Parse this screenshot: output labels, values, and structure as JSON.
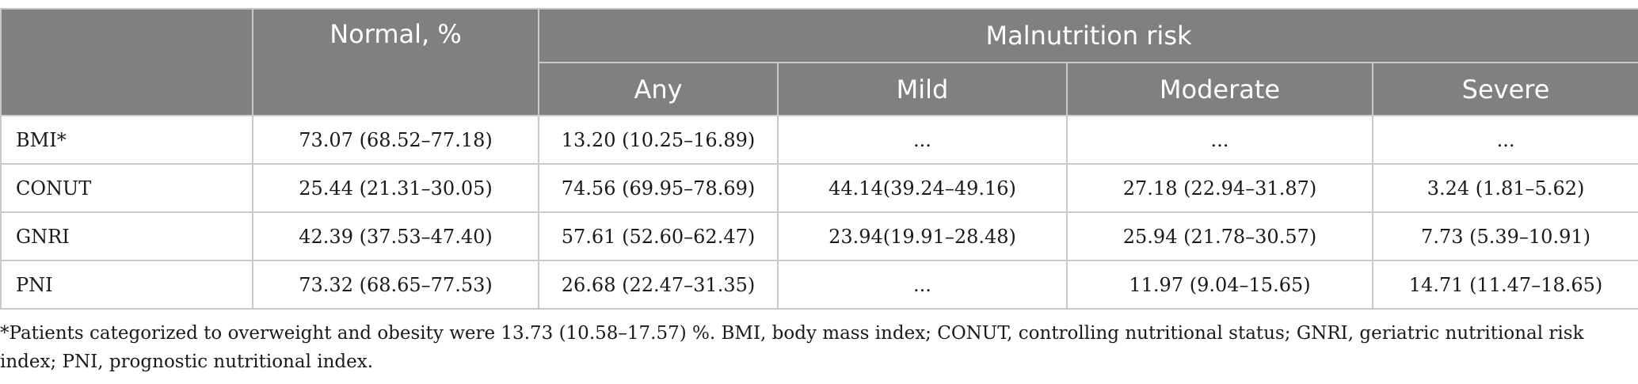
{
  "header": {
    "blank": "",
    "normal": "Normal, %",
    "malnutrition": "Malnutrition risk",
    "sub": [
      "Any",
      "Mild",
      "Moderate",
      "Severe"
    ]
  },
  "rows": [
    {
      "label": "BMI*",
      "normal": "73.07 (68.52–77.18)",
      "any": "13.20 (10.25–16.89)",
      "mild": "...",
      "moderate": "...",
      "severe": "..."
    },
    {
      "label": "CONUT",
      "normal": "25.44 (21.31–30.05)",
      "any": "74.56 (69.95–78.69)",
      "mild": "44.14(39.24–49.16)",
      "moderate": "27.18 (22.94–31.87)",
      "severe": "3.24 (1.81–5.62)"
    },
    {
      "label": "GNRI",
      "normal": "42.39 (37.53–47.40)",
      "any": "57.61 (52.60–62.47)",
      "mild": "23.94(19.91–28.48)",
      "moderate": "25.94 (21.78–30.57)",
      "severe": "7.73 (5.39–10.91)"
    },
    {
      "label": "PNI",
      "normal": "73.32 (68.65–77.53)",
      "any": "26.68 (22.47–31.35)",
      "mild": "...",
      "moderate": "11.97 (9.04–15.65)",
      "severe": "14.71 (11.47–18.65)"
    }
  ],
  "footnote": "*Patients categorized to overweight and obesity were 13.73 (10.58–17.57) %. BMI, body mass index; CONUT, controlling nutritional status; GNRI, geriatric nutritional risk index; PNI, prognostic nutritional index."
}
